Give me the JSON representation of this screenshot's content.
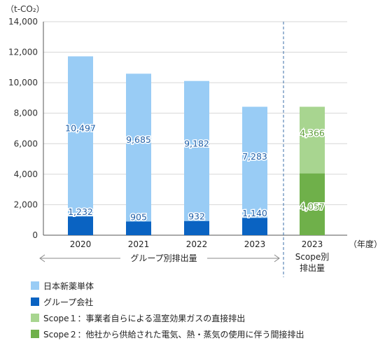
{
  "chart_data": {
    "type": "bar",
    "unit_label": "（t-CO₂）",
    "year_unit": "（年度）",
    "ylim": [
      0,
      14000
    ],
    "yticks": [
      0,
      2000,
      4000,
      6000,
      8000,
      10000,
      12000,
      14000
    ],
    "ytick_labels": [
      "0",
      "2,000",
      "4,000",
      "6,000",
      "8,000",
      "10,000",
      "12,000",
      "14,000"
    ],
    "grid": "horizontal",
    "group_caption": "グループ別排出量",
    "categories": [
      "2020",
      "2021",
      "2022",
      "2023"
    ],
    "series": [
      {
        "name": "グループ会社",
        "values": [
          1232,
          905,
          932,
          1140
        ],
        "labels": [
          "1,232",
          "905",
          "932",
          "1,140"
        ]
      },
      {
        "name": "日本新薬単体",
        "values": [
          10497,
          9685,
          9182,
          7283
        ],
        "labels": [
          "10,497",
          "9,685",
          "9,182",
          "7,283"
        ]
      }
    ],
    "scope_category": "2023",
    "scope_caption_lines": [
      "Scope別",
      "排出量"
    ],
    "scope_series": [
      {
        "name": "Scope２",
        "value": 4057,
        "label": "4,057"
      },
      {
        "name": "Scope１",
        "value": 4366,
        "label": "4,366"
      }
    ]
  },
  "colors": {
    "nihon_shinyaku": "#99CCF5",
    "group_companies": "#0A63C2",
    "scope1": "#A8D590",
    "scope2": "#6FB04A",
    "axis": "#555555",
    "grid": "#d6d6d6",
    "divider": "#3B6FA8"
  },
  "legend": [
    {
      "label": "日本新薬単体",
      "color": "#99CCF5"
    },
    {
      "label": "グループ会社",
      "color": "#0A63C2"
    },
    {
      "label": "Scope１：事業者自らによる温室効果ガスの直接排出",
      "color": "#A8D590"
    },
    {
      "label": "Scope２：他社から供給された電気、熱・蒸気の使用に伴う間接排出",
      "color": "#6FB04A"
    }
  ]
}
